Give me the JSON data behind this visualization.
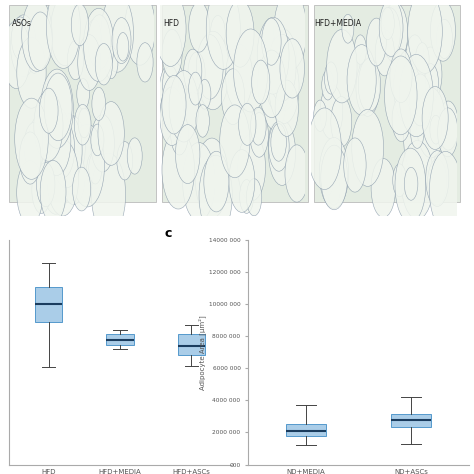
{
  "top_panels": {
    "labels": [
      "ASOs",
      "HFD",
      "HFD+MEDIA"
    ],
    "bg_color": "#e8ede5",
    "border_color": "#bbbbbb",
    "label_color": "#222222",
    "label_fontsize": 5.5
  },
  "left_plot": {
    "groups": [
      "HFD",
      "HFD+MEDIA",
      "HFD+ASCs"
    ],
    "box_data": [
      {
        "whislo": 6500000,
        "q1": 9500000,
        "med": 10700000,
        "q3": 11900000,
        "whishi": 13500000
      },
      {
        "whislo": 7700000,
        "q1": 8000000,
        "med": 8300000,
        "q3": 8700000,
        "whishi": 9000000
      },
      {
        "whislo": 6600000,
        "q1": 7300000,
        "med": 7900000,
        "q3": 8700000,
        "whishi": 9300000
      }
    ],
    "ylim": [
      0,
      15000000
    ],
    "ylabel": ""
  },
  "right_plot": {
    "groups": [
      "ND+MEDIA",
      "ND+ASCs"
    ],
    "box_data": [
      {
        "whislo": 1200000,
        "q1": 1800000,
        "med": 2100000,
        "q3": 2550000,
        "whishi": 3700000
      },
      {
        "whislo": 1300000,
        "q1": 2350000,
        "med": 2750000,
        "q3": 3150000,
        "whishi": 4200000
      }
    ],
    "ylim": [
      0,
      14000000
    ],
    "yticks": [
      0,
      2000000,
      4000000,
      6000000,
      8000000,
      10000000,
      12000000,
      14000000
    ],
    "ytick_labels": [
      "000",
      "2000 000",
      "4000 000",
      "6000 000",
      "8000 000",
      "10000 000",
      "12000 000",
      "14000 000"
    ],
    "ylabel": "Adipocyte Area [μm²]",
    "panel_label": "c"
  },
  "box_facecolor": "#aacde8",
  "box_edgecolor": "#5599cc",
  "median_linecolor": "#1a3c5e",
  "whisker_linecolor": "#444444",
  "cap_linecolor": "#444444",
  "spine_color": "#aaaaaa",
  "tick_label_color": "#555555"
}
